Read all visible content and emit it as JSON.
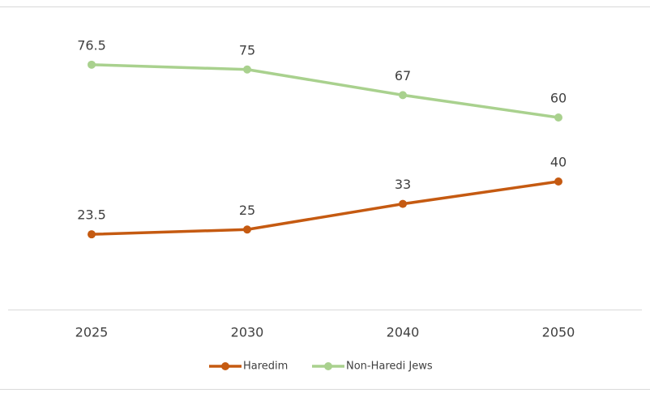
{
  "chart_data": {
    "type": "line",
    "categories": [
      "2025",
      "2030",
      "2040",
      "2050"
    ],
    "series": [
      {
        "name": "Haredim",
        "color": "#c55a11",
        "values": [
          23.5,
          25,
          33,
          40
        ]
      },
      {
        "name": "Non-Haredi Jews",
        "color": "#a9d18e",
        "values": [
          76.5,
          75,
          67,
          60
        ]
      }
    ],
    "ylim": [
      0,
      100
    ],
    "legend": "bottom"
  }
}
